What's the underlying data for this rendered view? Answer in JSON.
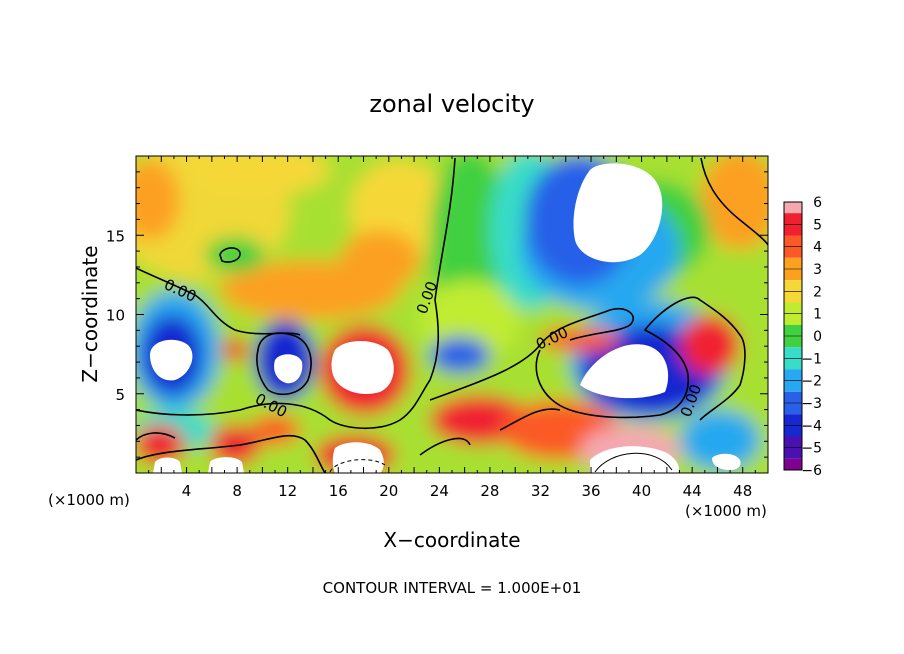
{
  "chart_data": {
    "type": "heatmap",
    "title": "zonal velocity",
    "xlabel": "X−coordinate",
    "ylabel": "Z−coordinate",
    "x_unit_left": "(×1000 m)",
    "x_unit_right": "(×1000 m)",
    "footer": "CONTOUR INTERVAL = 1.000E+01",
    "xlim": [
      0,
      50
    ],
    "ylim": [
      0,
      20
    ],
    "x_ticks": [
      4,
      8,
      12,
      16,
      20,
      24,
      28,
      32,
      36,
      40,
      44,
      48
    ],
    "y_ticks": [
      5,
      10,
      15
    ],
    "grid": false,
    "colorbar": {
      "placement": "right",
      "levels": [
        6,
        5,
        4,
        3,
        2,
        1,
        0,
        -1,
        -2,
        -3,
        -4,
        -5,
        -6
      ],
      "labels": [
        "6",
        "5",
        "4",
        "3",
        "2",
        "1",
        "0",
        "−1",
        "−2",
        "−3",
        "−4",
        "−5",
        "−6"
      ],
      "colors": [
        "#f4a8b0",
        "#f02030",
        "#fb5a28",
        "#fca020",
        "#f5d838",
        "#c0ec30",
        "#40d040",
        "#38dcc8",
        "#28a8f0",
        "#2860e8",
        "#1828d0",
        "#4a10b0",
        "#800090"
      ]
    },
    "contour_labels": [
      "0.00",
      "0.00",
      "0.00",
      "0.00",
      "0.00"
    ]
  }
}
